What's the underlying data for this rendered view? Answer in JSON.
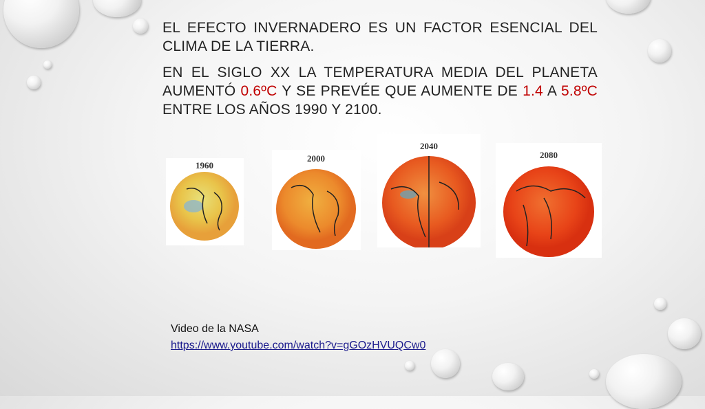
{
  "paragraphs": [
    {
      "segments": [
        "EL EFECTO INVERNADERO ES UN FACTOR ESENCIAL DEL CLIMA DE LA TIERRA."
      ]
    },
    {
      "segments": [
        "EN EL SIGLO XX LA TEMPERATURA MEDIA DEL PLANETA AUMENTÓ ",
        "0.6ºC",
        " Y SE PREVÉE QUE AUMENTE DE ",
        "1.4",
        " A ",
        "5.8ºC",
        " ENTRE LOS AÑOS 1990 Y 2100."
      ]
    }
  ],
  "globes": [
    {
      "year": "1960"
    },
    {
      "year": "2000"
    },
    {
      "year": "2040"
    },
    {
      "year": "2080"
    }
  ],
  "video": {
    "caption": "Video de la NASA",
    "link": "https://www.youtube.com/watch?v=gGOzHVUQCw0"
  }
}
